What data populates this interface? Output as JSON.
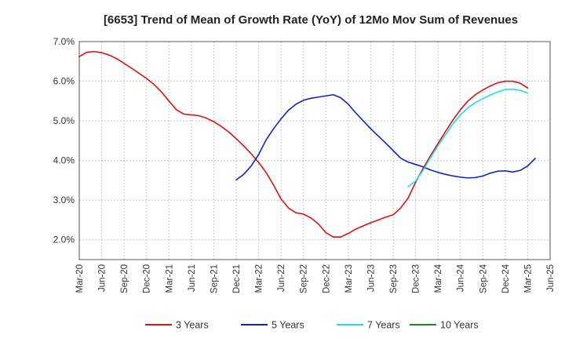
{
  "chart_data": {
    "type": "line",
    "title": "[6653]  Trend of Mean of Growth Rate (YoY) of 12Mo Mov Sum of Revenues",
    "xlabel": "",
    "ylabel": "",
    "ylim": [
      1.5,
      7.0
    ],
    "yticks": [
      {
        "value": 2.0,
        "label": "2.0%"
      },
      {
        "value": 3.0,
        "label": "3.0%"
      },
      {
        "value": 4.0,
        "label": "4.0%"
      },
      {
        "value": 5.0,
        "label": "5.0%"
      },
      {
        "value": 6.0,
        "label": "6.0%"
      },
      {
        "value": 7.0,
        "label": "7.0%"
      }
    ],
    "x_range_months": [
      0,
      63
    ],
    "xticks": [
      {
        "month": 0,
        "label": "Mar-20"
      },
      {
        "month": 3,
        "label": "Jun-20"
      },
      {
        "month": 6,
        "label": "Sep-20"
      },
      {
        "month": 9,
        "label": "Dec-20"
      },
      {
        "month": 12,
        "label": "Mar-21"
      },
      {
        "month": 15,
        "label": "Jun-21"
      },
      {
        "month": 18,
        "label": "Sep-21"
      },
      {
        "month": 21,
        "label": "Dec-21"
      },
      {
        "month": 24,
        "label": "Mar-22"
      },
      {
        "month": 27,
        "label": "Jun-22"
      },
      {
        "month": 30,
        "label": "Sep-22"
      },
      {
        "month": 33,
        "label": "Dec-22"
      },
      {
        "month": 36,
        "label": "Mar-23"
      },
      {
        "month": 39,
        "label": "Jun-23"
      },
      {
        "month": 42,
        "label": "Sep-23"
      },
      {
        "month": 45,
        "label": "Dec-23"
      },
      {
        "month": 48,
        "label": "Mar-24"
      },
      {
        "month": 51,
        "label": "Jun-24"
      },
      {
        "month": 54,
        "label": "Sep-24"
      },
      {
        "month": 57,
        "label": "Dec-24"
      },
      {
        "month": 60,
        "label": "Mar-25"
      },
      {
        "month": 63,
        "label": "Jun-25"
      }
    ],
    "grid": true,
    "legend_position": "bottom",
    "series": [
      {
        "name": "3 Years",
        "color": "#dd1111",
        "start_month": 0,
        "values": [
          6.62,
          6.73,
          6.75,
          6.72,
          6.66,
          6.57,
          6.45,
          6.33,
          6.2,
          6.07,
          5.92,
          5.73,
          5.5,
          5.28,
          5.17,
          5.15,
          5.13,
          5.07,
          4.98,
          4.86,
          4.72,
          4.55,
          4.37,
          4.17,
          3.95,
          3.7,
          3.38,
          3.03,
          2.8,
          2.68,
          2.65,
          2.55,
          2.4,
          2.18,
          2.07,
          2.07,
          2.16,
          2.27,
          2.35,
          2.43,
          2.5,
          2.57,
          2.63,
          2.8,
          3.05,
          3.45,
          3.8,
          4.12,
          4.43,
          4.73,
          5.02,
          5.28,
          5.5,
          5.66,
          5.78,
          5.88,
          5.96,
          6.0,
          6.0,
          5.95,
          5.83
        ]
      },
      {
        "name": "5 Years",
        "color": "#1122cc",
        "start_month": 21,
        "values": [
          3.51,
          3.65,
          3.86,
          4.15,
          4.52,
          4.8,
          5.05,
          5.27,
          5.42,
          5.52,
          5.57,
          5.6,
          5.63,
          5.66,
          5.58,
          5.42,
          5.2,
          5.0,
          4.8,
          4.62,
          4.44,
          4.25,
          4.06,
          3.96,
          3.9,
          3.84,
          3.76,
          3.7,
          3.65,
          3.61,
          3.58,
          3.56,
          3.57,
          3.61,
          3.68,
          3.73,
          3.74,
          3.71,
          3.75,
          3.86,
          4.05
        ]
      },
      {
        "name": "7 Years",
        "color": "#22dddd",
        "start_month": 44,
        "values": [
          3.34,
          3.48,
          3.75,
          4.07,
          4.37,
          4.65,
          4.92,
          5.15,
          5.33,
          5.46,
          5.56,
          5.65,
          5.73,
          5.79,
          5.8,
          5.77,
          5.7
        ]
      },
      {
        "name": "10 Years",
        "color": "#228822",
        "start_month": 0,
        "values": []
      }
    ]
  }
}
